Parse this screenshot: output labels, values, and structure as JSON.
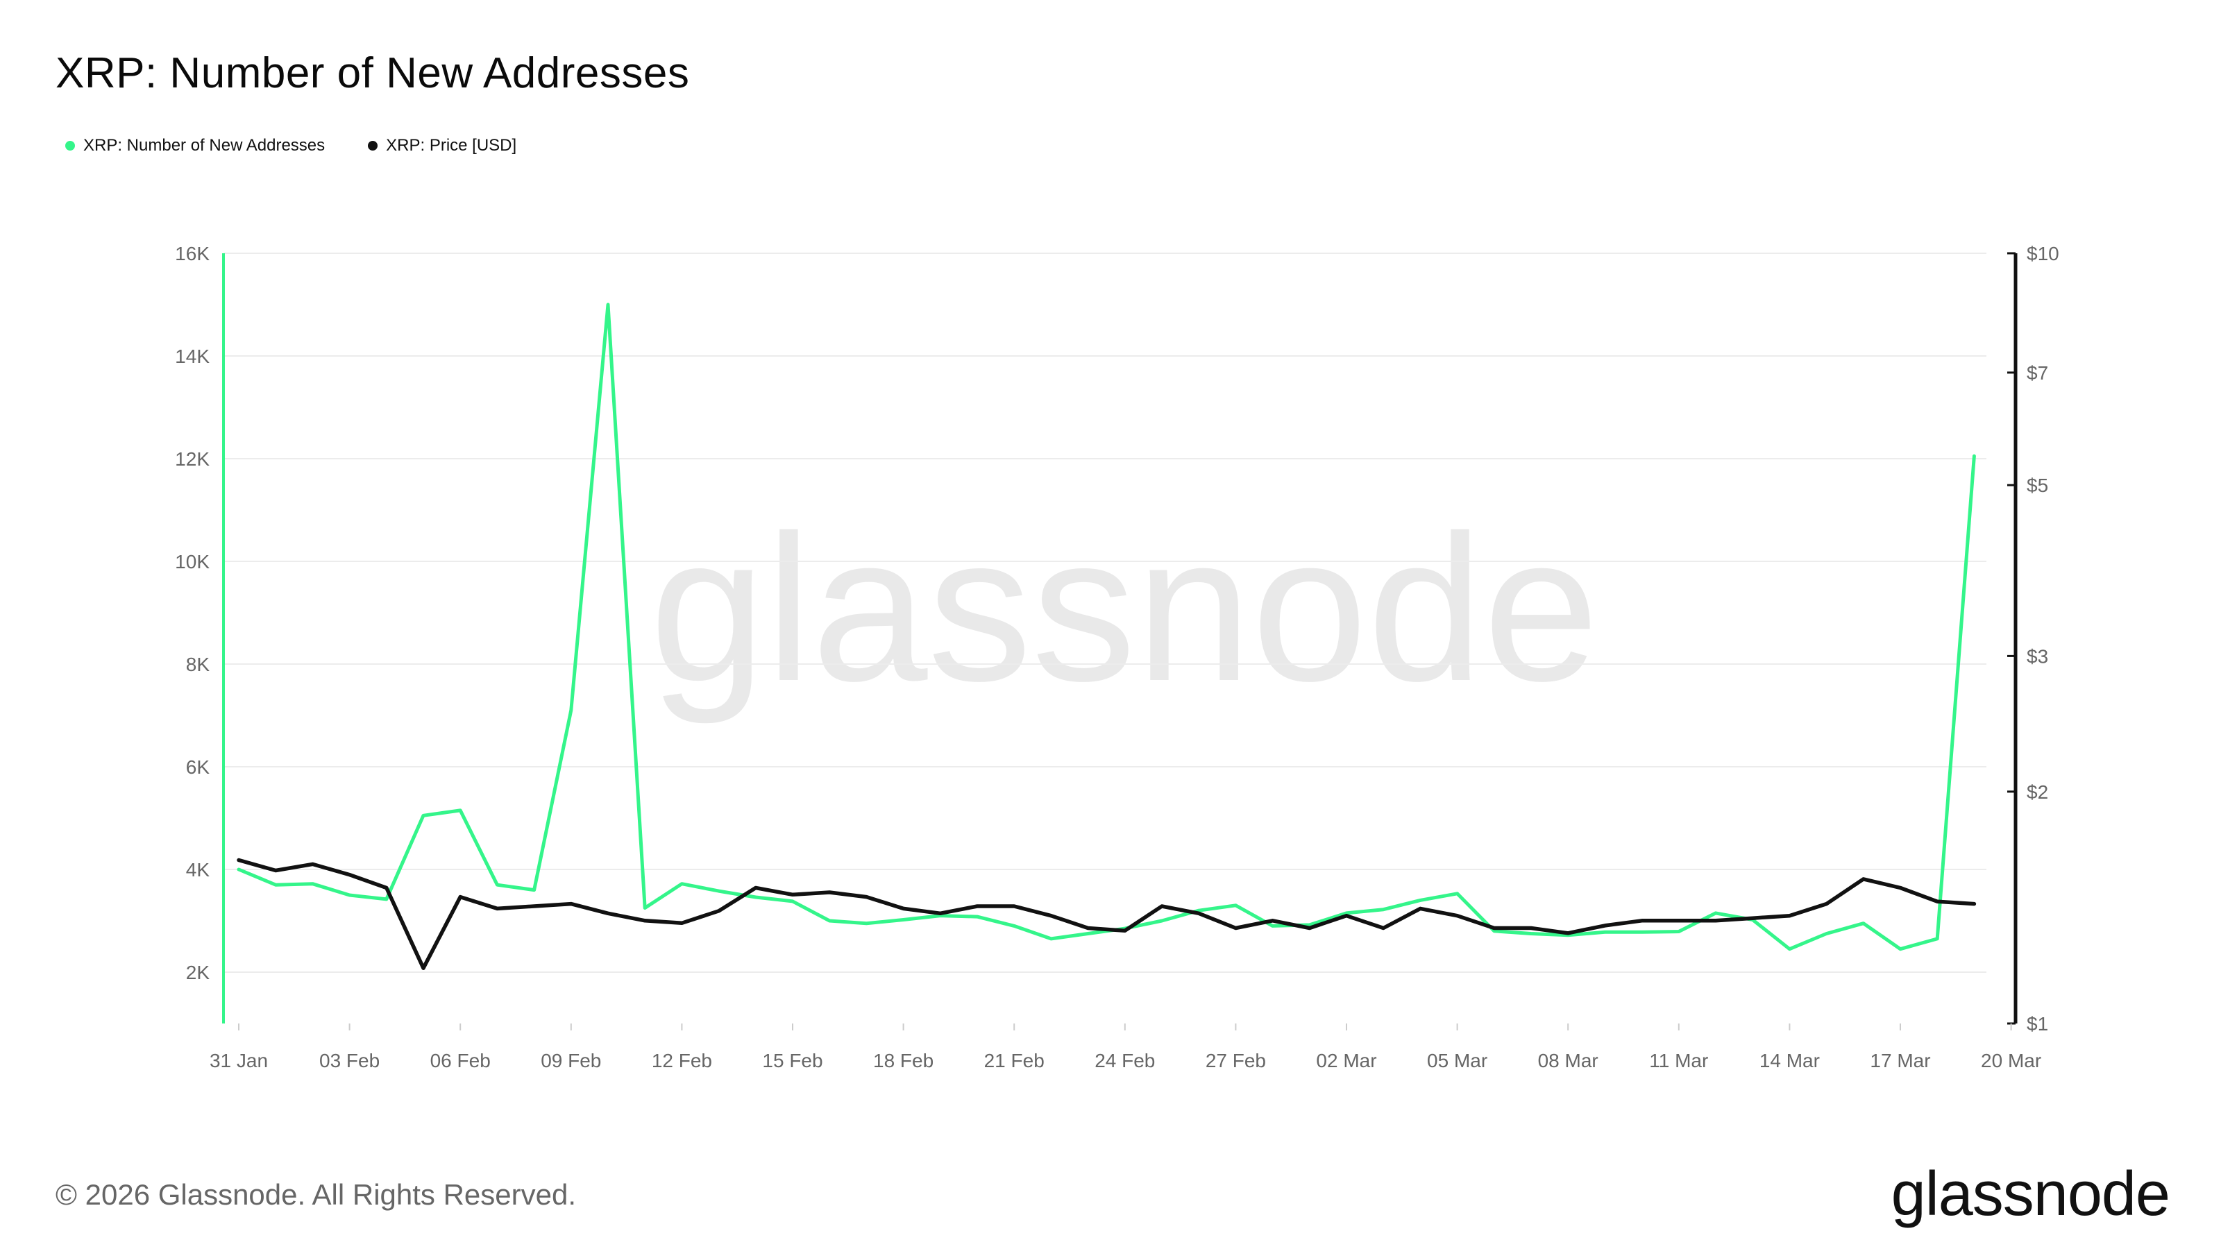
{
  "title": "XRP: Number of New Addresses",
  "legend": [
    {
      "label": "XRP: Number of New Addresses",
      "color": "#34f58a"
    },
    {
      "label": "XRP: Price [USD]",
      "color": "#111111"
    }
  ],
  "watermark": "glassnode",
  "footer": {
    "copyright": "© 2026 Glassnode. All Rights Reserved.",
    "logo": "glassnode"
  },
  "chart_data": {
    "type": "line",
    "x_ticks": [
      "31 Jan",
      "03 Feb",
      "06 Feb",
      "09 Feb",
      "12 Feb",
      "15 Feb",
      "18 Feb",
      "21 Feb",
      "24 Feb",
      "27 Feb",
      "02 Mar",
      "05 Mar",
      "08 Mar",
      "11 Mar",
      "14 Mar",
      "17 Mar",
      "20 Mar"
    ],
    "y_left": {
      "ticks": [
        2000,
        4000,
        6000,
        8000,
        10000,
        12000,
        14000,
        16000
      ],
      "tick_labels": [
        "2K",
        "4K",
        "6K",
        "8K",
        "10K",
        "12K",
        "14K",
        "16K"
      ],
      "range": [
        1000,
        16000
      ]
    },
    "y_right": {
      "scale": "log",
      "ticks": [
        1,
        2,
        3,
        5,
        7,
        10
      ],
      "tick_labels": [
        "$1",
        "$2",
        "$3",
        "$5",
        "$7",
        "$10"
      ],
      "range": [
        1,
        10
      ]
    },
    "grid": true,
    "legend_position": "top-left",
    "x": [
      "31 Jan",
      "01 Feb",
      "02 Feb",
      "03 Feb",
      "04 Feb",
      "05 Feb",
      "06 Feb",
      "07 Feb",
      "08 Feb",
      "09 Feb",
      "10 Feb",
      "11 Feb",
      "12 Feb",
      "13 Feb",
      "14 Feb",
      "15 Feb",
      "16 Feb",
      "17 Feb",
      "18 Feb",
      "19 Feb",
      "20 Feb",
      "21 Feb",
      "22 Feb",
      "23 Feb",
      "24 Feb",
      "25 Feb",
      "26 Feb",
      "27 Feb",
      "28 Feb",
      "01 Mar",
      "02 Mar",
      "03 Mar",
      "04 Mar",
      "05 Mar",
      "06 Mar",
      "07 Mar",
      "08 Mar",
      "09 Mar",
      "10 Mar",
      "11 Mar",
      "12 Mar",
      "13 Mar",
      "14 Mar",
      "15 Mar",
      "16 Mar",
      "17 Mar",
      "18 Mar",
      "19 Mar"
    ],
    "series": [
      {
        "name": "XRP: Number of New Addresses",
        "axis": "left",
        "color": "#34f58a",
        "values": [
          4000,
          3700,
          3720,
          3500,
          3420,
          5050,
          5150,
          3700,
          3600,
          7100,
          15000,
          3250,
          3720,
          3580,
          3460,
          3380,
          3000,
          2950,
          3020,
          3100,
          3080,
          2900,
          2650,
          2750,
          2850,
          3000,
          3200,
          3300,
          2900,
          2920,
          3150,
          3220,
          3400,
          3530,
          2800,
          2750,
          2720,
          2780,
          2780,
          2790,
          3150,
          3020,
          2450,
          2750,
          2950,
          2450,
          2650,
          12050
        ]
      },
      {
        "name": "XRP: Price [USD]",
        "axis": "right",
        "color": "#111111",
        "values": [
          1.63,
          1.58,
          1.61,
          1.56,
          1.5,
          1.18,
          1.46,
          1.41,
          1.42,
          1.43,
          1.39,
          1.36,
          1.35,
          1.4,
          1.5,
          1.47,
          1.48,
          1.46,
          1.41,
          1.39,
          1.42,
          1.42,
          1.38,
          1.33,
          1.32,
          1.42,
          1.39,
          1.33,
          1.36,
          1.33,
          1.38,
          1.33,
          1.41,
          1.38,
          1.33,
          1.33,
          1.31,
          1.34,
          1.36,
          1.36,
          1.36,
          1.37,
          1.38,
          1.43,
          1.54,
          1.5,
          1.44,
          1.43
        ]
      }
    ]
  }
}
